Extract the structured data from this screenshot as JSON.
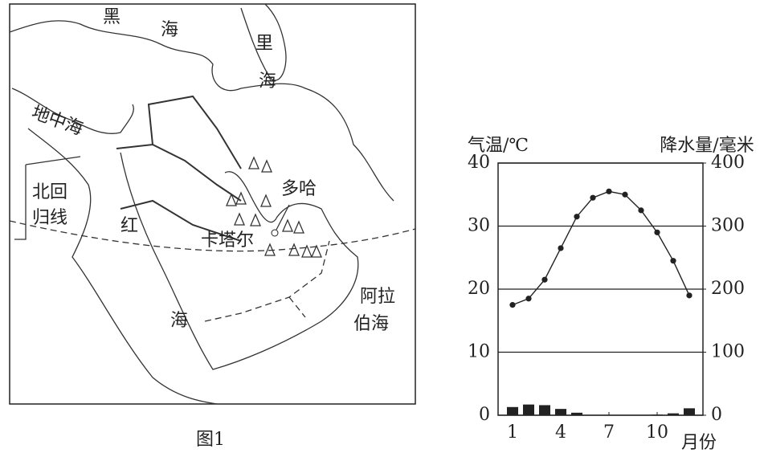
{
  "map": {
    "labels": [
      "黑",
      "海",
      "里",
      "海",
      "地中海",
      "北回",
      "归线",
      "红",
      "海",
      "阿拉",
      "伯海",
      "多哈",
      "卡塔尔"
    ],
    "caption": "图1"
  },
  "chart_data": {
    "type": "combo",
    "x": [
      1,
      2,
      3,
      4,
      5,
      6,
      7,
      8,
      9,
      10,
      11,
      12
    ],
    "xlim": [
      0.1,
      12.85
    ],
    "xticks": [
      1,
      4,
      7,
      10
    ],
    "xlabel": "月份",
    "ylim": [
      0,
      40
    ],
    "yticks": [
      0,
      10,
      20,
      30,
      40
    ],
    "ylabel": "气温/℃",
    "y2lim": [
      0,
      400
    ],
    "y2ticks": [
      0,
      100,
      200,
      300,
      400
    ],
    "y2label": "降水量/毫米",
    "grid": true,
    "series": [
      {
        "name": "气温",
        "type": "line",
        "color": "#222222",
        "values": [
          17.5,
          18.5,
          21.5,
          26.5,
          31.5,
          34.5,
          35.5,
          35,
          32.5,
          29,
          24.5,
          19
        ]
      },
      {
        "name": "降水量",
        "type": "bar",
        "axis": "y2",
        "color": "#222222",
        "values": [
          13,
          17,
          16,
          10,
          4,
          0,
          0,
          0,
          0,
          1,
          3,
          11
        ]
      }
    ]
  }
}
